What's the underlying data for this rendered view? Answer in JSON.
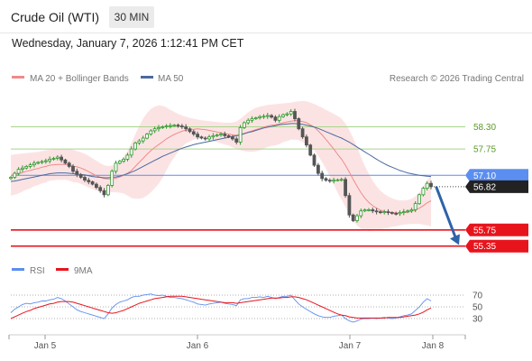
{
  "header": {
    "title": "Crude Oil (WTI)",
    "interval": "30 MIN",
    "datetime": "Wednesday, January 7, 2026 1:12:41 PM CET"
  },
  "colors": {
    "ma20": "#f08a8a",
    "ma50": "#4a6aa0",
    "band": "#fbdada",
    "candle_up": "#2f9a2f",
    "candle_down": "#555555",
    "support": "#e8141c",
    "resistance": "#a8d58a",
    "pivot": "#5b8ef0",
    "last_price": "#222222",
    "arrow": "#2e63a8",
    "rsi": "#5b8ef0",
    "rsi_ma": "#e8141c"
  },
  "legend": {
    "ma_band": "MA 20 + Bollinger Bands",
    "ma50": "MA 50",
    "credit": "Research © 2026 Trading Central"
  },
  "chart_data": {
    "type": "candlestick",
    "x_ticks": [
      "Jan 5",
      "Jan 6",
      "Jan 7",
      "Jan 8"
    ],
    "y_range": [
      55.2,
      58.9
    ],
    "levels": {
      "resistances": [
        {
          "label": "58.30",
          "value": 58.3
        },
        {
          "label": "57.75",
          "value": 57.75
        }
      ],
      "pivot": {
        "label": "57.10",
        "value": 57.1
      },
      "last_price": {
        "label": "56.82",
        "value": 56.82
      },
      "supports": [
        {
          "label": "55.75",
          "value": 55.75
        },
        {
          "label": "55.35",
          "value": 55.35
        }
      ]
    },
    "close": [
      57.05,
      57.15,
      57.25,
      57.28,
      57.32,
      57.36,
      57.4,
      57.42,
      57.44,
      57.46,
      57.5,
      57.52,
      57.55,
      57.48,
      57.4,
      57.32,
      57.2,
      57.12,
      57.05,
      56.98,
      56.94,
      56.88,
      56.8,
      56.72,
      56.62,
      56.85,
      57.2,
      57.4,
      57.45,
      57.5,
      57.6,
      57.75,
      57.9,
      57.95,
      58.02,
      58.12,
      58.2,
      58.25,
      58.28,
      58.3,
      58.32,
      58.33,
      58.34,
      58.32,
      58.3,
      58.25,
      58.18,
      58.12,
      58.05,
      58.02,
      58.0,
      58.05,
      58.08,
      58.1,
      58.12,
      58.08,
      58.05,
      58.0,
      57.92,
      58.28,
      58.4,
      58.46,
      58.5,
      58.52,
      58.55,
      58.56,
      58.58,
      58.54,
      58.46,
      58.55,
      58.6,
      58.62,
      58.68,
      58.5,
      58.25,
      58.05,
      57.85,
      57.6,
      57.35,
      57.15,
      57.02,
      56.98,
      56.96,
      56.98,
      56.99,
      57.0,
      56.6,
      56.12,
      55.98,
      56.1,
      56.22,
      56.25,
      56.25,
      56.22,
      56.2,
      56.18,
      56.2,
      56.18,
      56.16,
      56.15,
      56.18,
      56.2,
      56.22,
      56.25,
      56.4,
      56.62,
      56.78,
      56.9,
      56.82
    ],
    "ma20": [
      57.1,
      57.12,
      57.14,
      57.17,
      57.2,
      57.22,
      57.25,
      57.27,
      57.3,
      57.32,
      57.35,
      57.36,
      57.37,
      57.37,
      57.37,
      57.36,
      57.33,
      57.31,
      57.28,
      57.24,
      57.19,
      57.14,
      57.09,
      57.05,
      57.02,
      57.01,
      57.01,
      57.03,
      57.06,
      57.1,
      57.15,
      57.22,
      57.32,
      57.42,
      57.52,
      57.62,
      57.71,
      57.79,
      57.86,
      57.93,
      58.0,
      58.06,
      58.11,
      58.15,
      58.19,
      58.22,
      58.23,
      58.24,
      58.25,
      58.24,
      58.23,
      58.21,
      58.19,
      58.17,
      58.15,
      58.13,
      58.12,
      58.1,
      58.09,
      58.11,
      58.14,
      58.17,
      58.2,
      58.23,
      58.26,
      58.29,
      58.32,
      58.34,
      58.35,
      58.37,
      58.4,
      58.42,
      58.44,
      58.45,
      58.45,
      58.43,
      58.4,
      58.35,
      58.29,
      58.2,
      58.1,
      57.99,
      57.87,
      57.75,
      57.62,
      57.5,
      57.35,
      57.18,
      57.0,
      56.83,
      56.67,
      56.54,
      56.43,
      56.35,
      56.29,
      56.24,
      56.21,
      56.19,
      56.18,
      56.17,
      56.17,
      56.18,
      56.19,
      56.21,
      56.24,
      56.29,
      56.35,
      56.42,
      56.47
    ],
    "bb_upper": [
      57.6,
      57.62,
      57.63,
      57.64,
      57.65,
      57.66,
      57.67,
      57.68,
      57.7,
      57.72,
      57.73,
      57.74,
      57.75,
      57.75,
      57.75,
      57.75,
      57.73,
      57.7,
      57.67,
      57.63,
      57.58,
      57.52,
      57.46,
      57.4,
      57.35,
      57.33,
      57.34,
      57.38,
      57.45,
      57.55,
      57.7,
      57.9,
      58.12,
      58.32,
      58.5,
      58.64,
      58.74,
      58.8,
      58.83,
      58.82,
      58.78,
      58.72,
      58.67,
      58.62,
      58.58,
      58.55,
      58.52,
      58.5,
      58.48,
      58.46,
      58.45,
      58.44,
      58.43,
      58.42,
      58.41,
      58.4,
      58.4,
      58.41,
      58.43,
      58.5,
      58.58,
      58.66,
      58.72,
      58.77,
      58.8,
      58.82,
      58.84,
      58.85,
      58.86,
      58.87,
      58.88,
      58.89,
      58.9,
      58.92,
      58.93,
      58.94,
      58.93,
      58.9,
      58.86,
      58.82,
      58.77,
      58.72,
      58.67,
      58.62,
      58.57,
      58.5,
      58.38,
      58.22,
      58.02,
      57.8,
      57.56,
      57.33,
      57.14,
      56.97,
      56.83,
      56.72,
      56.64,
      56.58,
      56.53,
      56.5,
      56.48,
      56.48,
      56.49,
      56.52,
      56.58,
      56.68,
      56.82,
      56.98,
      57.1
    ],
    "bb_lower": [
      56.6,
      56.62,
      56.65,
      56.7,
      56.75,
      56.78,
      56.83,
      56.86,
      56.9,
      56.92,
      56.97,
      56.98,
      56.99,
      56.99,
      56.99,
      56.97,
      56.93,
      56.92,
      56.89,
      56.85,
      56.8,
      56.76,
      56.72,
      56.7,
      56.69,
      56.69,
      56.68,
      56.68,
      56.67,
      56.65,
      56.6,
      56.54,
      56.52,
      56.52,
      56.54,
      56.6,
      56.68,
      56.78,
      56.89,
      57.04,
      57.22,
      57.4,
      57.55,
      57.68,
      57.8,
      57.89,
      57.94,
      57.98,
      58.02,
      58.02,
      58.01,
      57.98,
      57.95,
      57.92,
      57.89,
      57.86,
      57.84,
      57.79,
      57.75,
      57.72,
      57.7,
      57.68,
      57.68,
      57.69,
      57.72,
      57.76,
      57.8,
      57.83,
      57.84,
      57.87,
      57.92,
      57.95,
      57.98,
      57.98,
      57.97,
      57.92,
      57.87,
      57.8,
      57.72,
      57.58,
      57.43,
      57.26,
      57.07,
      56.88,
      56.67,
      56.5,
      56.32,
      56.14,
      55.98,
      55.86,
      55.78,
      55.75,
      55.72,
      55.73,
      55.75,
      55.76,
      55.78,
      55.8,
      55.83,
      55.84,
      55.86,
      55.88,
      55.89,
      55.9,
      55.9,
      55.9,
      55.88,
      55.86,
      55.84
    ],
    "ma50": [
      56.95,
      56.96,
      56.98,
      57.0,
      57.02,
      57.04,
      57.06,
      57.08,
      57.1,
      57.12,
      57.14,
      57.15,
      57.16,
      57.16,
      57.16,
      57.15,
      57.14,
      57.13,
      57.12,
      57.11,
      57.09,
      57.07,
      57.06,
      57.05,
      57.04,
      57.04,
      57.05,
      57.06,
      57.08,
      57.11,
      57.14,
      57.18,
      57.22,
      57.27,
      57.32,
      57.37,
      57.42,
      57.47,
      57.52,
      57.57,
      57.61,
      57.65,
      57.69,
      57.73,
      57.77,
      57.8,
      57.83,
      57.86,
      57.88,
      57.9,
      57.92,
      57.94,
      57.96,
      57.98,
      58.0,
      58.02,
      58.04,
      58.06,
      58.08,
      58.1,
      58.13,
      58.16,
      58.18,
      58.21,
      58.24,
      58.27,
      58.29,
      58.31,
      58.33,
      58.35,
      58.36,
      58.37,
      58.38,
      58.38,
      58.37,
      58.36,
      58.34,
      58.32,
      58.29,
      58.26,
      58.22,
      58.18,
      58.14,
      58.1,
      58.06,
      58.02,
      57.97,
      57.92,
      57.86,
      57.8,
      57.74,
      57.68,
      57.62,
      57.56,
      57.5,
      57.44,
      57.39,
      57.34,
      57.3,
      57.26,
      57.22,
      57.19,
      57.16,
      57.14,
      57.12,
      57.1,
      57.09,
      57.08,
      57.07
    ],
    "rsi": {
      "ticks": [
        70,
        50,
        30
      ],
      "range": [
        10,
        90
      ],
      "legend": {
        "rsi": "RSI",
        "ma": "9MA"
      }
    },
    "rsi_values": [
      40,
      46,
      50,
      54,
      56,
      55,
      57,
      58,
      60,
      60,
      62,
      63,
      66,
      64,
      60,
      55,
      50,
      45,
      42,
      40,
      38,
      36,
      34,
      32,
      30,
      38,
      48,
      54,
      58,
      60,
      62,
      66,
      68,
      68,
      70,
      71,
      72,
      70,
      69,
      70,
      68,
      66,
      66,
      65,
      64,
      62,
      60,
      58,
      55,
      54,
      53,
      55,
      56,
      57,
      58,
      56,
      55,
      54,
      52,
      62,
      64,
      64,
      66,
      66,
      67,
      66,
      68,
      66,
      64,
      66,
      68,
      68,
      70,
      62,
      55,
      50,
      46,
      42,
      38,
      35,
      33,
      32,
      32,
      34,
      35,
      36,
      30,
      26,
      24,
      26,
      29,
      30,
      30,
      31,
      30,
      31,
      32,
      31,
      30,
      31,
      33,
      35,
      36,
      38,
      44,
      50,
      58,
      64,
      60
    ],
    "rsi_ma_values": [
      30,
      33,
      36,
      39,
      42,
      44,
      47,
      49,
      51,
      53,
      55,
      56,
      58,
      59,
      59,
      59,
      58,
      56,
      54,
      52,
      50,
      48,
      46,
      44,
      42,
      40,
      39,
      40,
      42,
      44,
      47,
      50,
      53,
      56,
      58,
      60,
      62,
      64,
      65,
      66,
      67,
      68,
      68,
      68,
      68,
      67,
      66,
      65,
      64,
      63,
      62,
      61,
      60,
      59,
      58,
      57,
      57,
      57,
      56,
      57,
      58,
      59,
      60,
      61,
      62,
      63,
      64,
      65,
      65,
      65,
      66,
      66,
      67,
      67,
      66,
      64,
      62,
      59,
      56,
      53,
      50,
      47,
      44,
      41,
      38,
      36,
      35,
      33,
      32,
      31,
      31,
      31,
      31,
      31,
      31,
      31,
      31,
      32,
      32,
      32,
      32,
      33,
      34,
      35,
      36,
      38,
      41,
      45,
      48
    ]
  }
}
